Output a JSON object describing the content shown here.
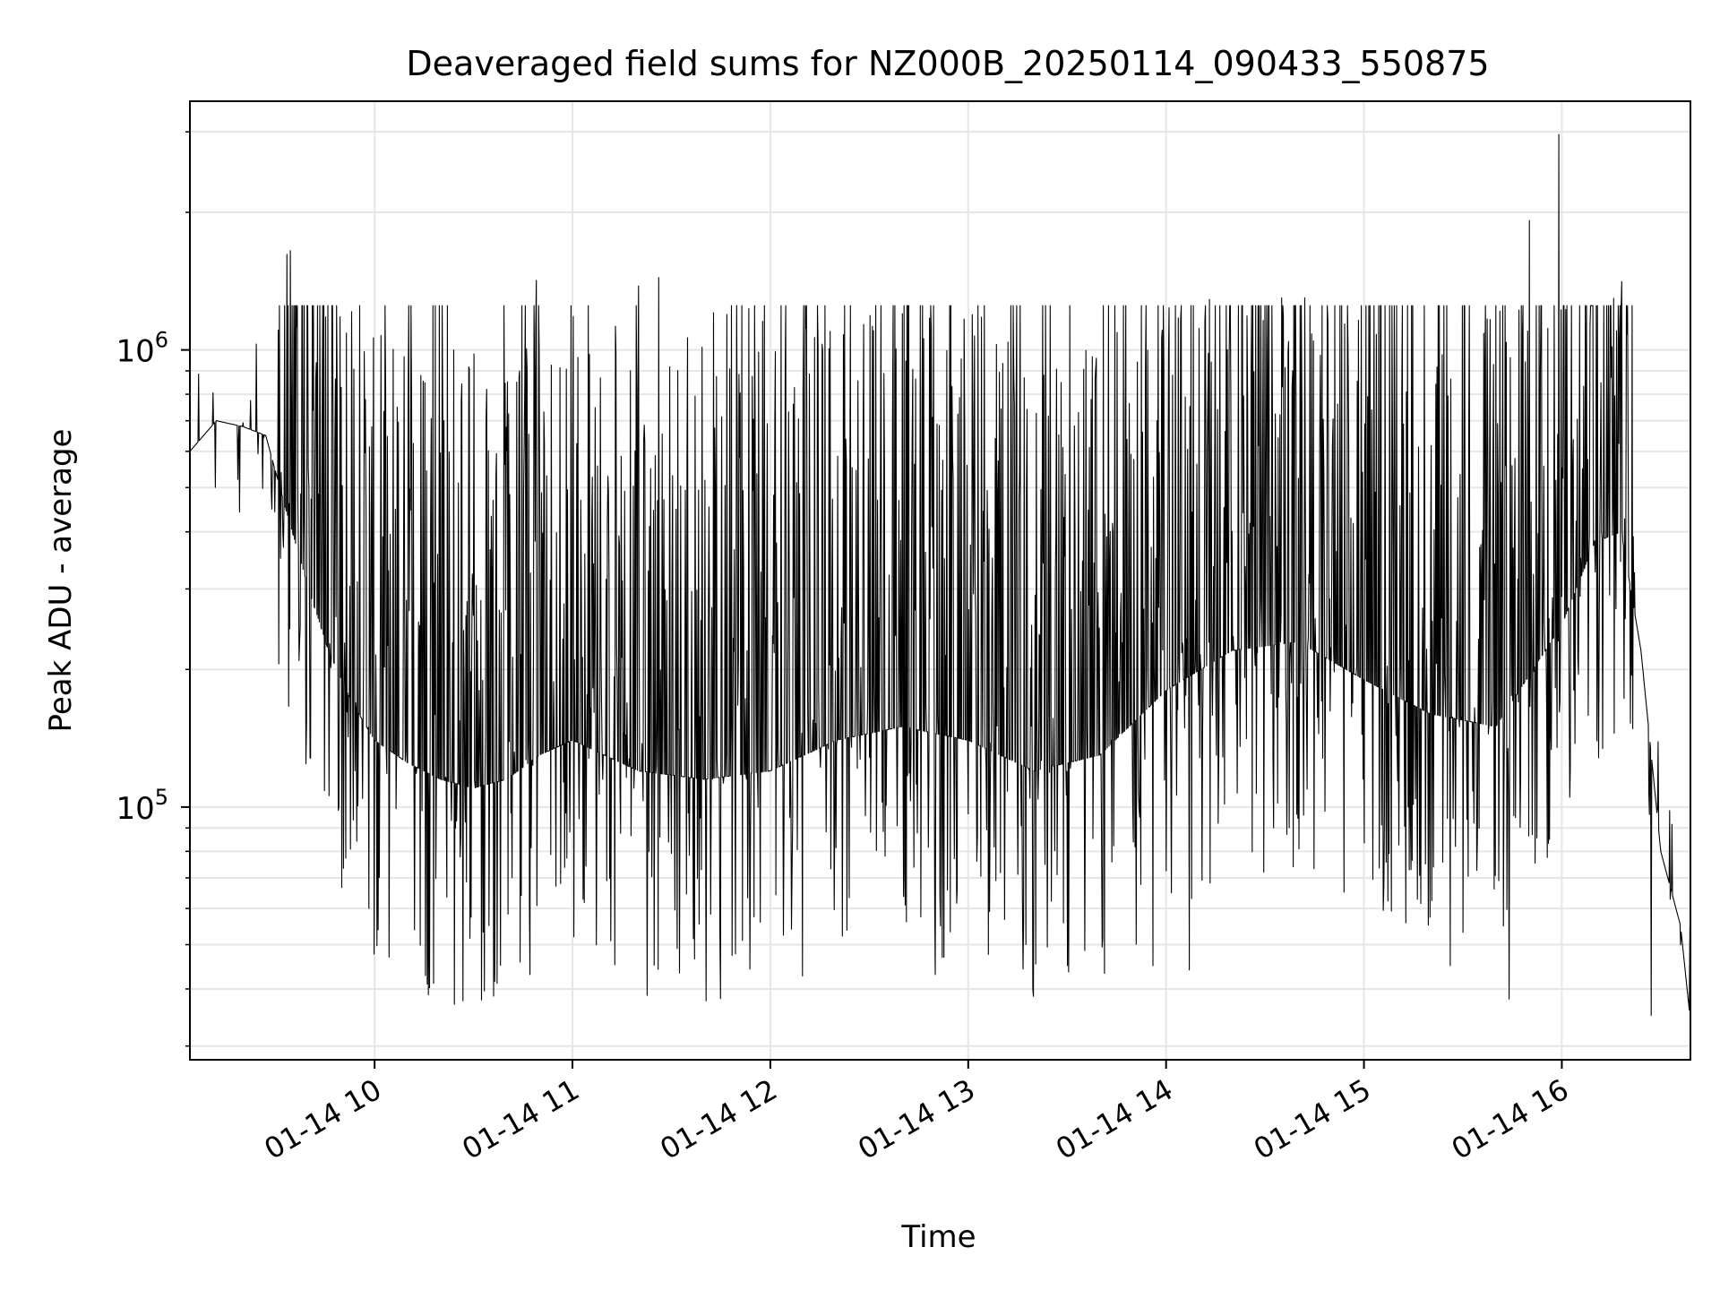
{
  "chart_data": {
    "type": "line",
    "title": "Deaveraged field sums for NZ000B_20250114_090433_550875",
    "xlabel": "Time",
    "ylabel": "Peak ADU - average",
    "yscale": "log",
    "xlim": [
      "2025-01-14 09:04",
      "2025-01-14 16:39"
    ],
    "ylim": [
      28000,
      3500000
    ],
    "grid": true,
    "legend": "none",
    "line_color": "#000000",
    "grid_color": "#e6e6e6",
    "x_ticks": [
      {
        "label": "01-14 10",
        "value": "2025-01-14 10:00"
      },
      {
        "label": "01-14 11",
        "value": "2025-01-14 11:00"
      },
      {
        "label": "01-14 12",
        "value": "2025-01-14 12:00"
      },
      {
        "label": "01-14 13",
        "value": "2025-01-14 13:00"
      },
      {
        "label": "01-14 14",
        "value": "2025-01-14 14:00"
      },
      {
        "label": "01-14 15",
        "value": "2025-01-14 15:00"
      },
      {
        "label": "01-14 16",
        "value": "2025-01-14 16:00"
      }
    ],
    "y_ticks": [
      {
        "base": "10",
        "exp": "5",
        "value": 100000
      },
      {
        "base": "10",
        "exp": "6",
        "value": 1000000
      }
    ],
    "series": [
      {
        "points": [
          [
            "2025-01-14 09:04",
            600000
          ],
          [
            "2025-01-14 09:12",
            700000
          ],
          [
            "2025-01-14 09:20",
            680000
          ],
          [
            "2025-01-14 09:27",
            650000
          ],
          [
            "2025-01-14 09:33",
            450000
          ],
          [
            "2025-01-14 09:40",
            300000
          ],
          [
            "2025-01-14 09:46",
            220000
          ],
          [
            "2025-01-14 09:53",
            170000
          ],
          [
            "2025-01-14 10:00",
            140000
          ],
          [
            "2025-01-14 10:10",
            125000
          ],
          [
            "2025-01-14 10:20",
            115000
          ],
          [
            "2025-01-14 10:30",
            110000
          ],
          [
            "2025-01-14 10:40",
            115000
          ],
          [
            "2025-01-14 10:50",
            130000
          ],
          [
            "2025-01-14 11:00",
            140000
          ],
          [
            "2025-01-14 11:20",
            120000
          ],
          [
            "2025-01-14 11:40",
            115000
          ],
          [
            "2025-01-14 12:00",
            120000
          ],
          [
            "2025-01-14 12:20",
            140000
          ],
          [
            "2025-01-14 12:40",
            150000
          ],
          [
            "2025-01-14 13:00",
            140000
          ],
          [
            "2025-01-14 13:20",
            120000
          ],
          [
            "2025-01-14 13:40",
            130000
          ],
          [
            "2025-01-14 14:00",
            180000
          ],
          [
            "2025-01-14 14:20",
            220000
          ],
          [
            "2025-01-14 14:40",
            230000
          ],
          [
            "2025-01-14 15:00",
            190000
          ],
          [
            "2025-01-14 15:20",
            160000
          ],
          [
            "2025-01-14 15:40",
            150000
          ],
          [
            "2025-01-14 16:00",
            250000
          ],
          [
            "2025-01-14 16:10",
            380000
          ],
          [
            "2025-01-14 16:18",
            400000
          ],
          [
            "2025-01-14 16:24",
            220000
          ],
          [
            "2025-01-14 16:30",
            80000
          ],
          [
            "2025-01-14 16:36",
            55000
          ],
          [
            "2025-01-14 16:39",
            34000
          ]
        ],
        "peaks": [
          [
            "2025-01-14 09:24",
            1030000
          ],
          [
            "2025-01-14 10:14",
            880000
          ],
          [
            "2025-01-14 10:43",
            850000
          ],
          [
            "2025-01-14 10:49",
            1420000
          ],
          [
            "2025-01-14 11:20",
            1380000
          ],
          [
            "2025-01-14 11:26",
            1440000
          ],
          [
            "2025-01-14 12:40",
            1200000
          ],
          [
            "2025-01-14 13:04",
            1180000
          ],
          [
            "2025-01-14 14:13",
            1290000
          ],
          [
            "2025-01-14 14:35",
            1300000
          ],
          [
            "2025-01-14 14:42",
            1300000
          ],
          [
            "2025-01-14 15:50",
            1920000
          ],
          [
            "2025-01-14 15:59",
            2960000
          ],
          [
            "2025-01-14 16:15",
            870000
          ]
        ],
        "dips": [
          [
            "2025-01-14 09:49",
            100000
          ],
          [
            "2025-01-14 10:47",
            43000
          ],
          [
            "2025-01-14 12:50",
            43000
          ],
          [
            "2025-01-14 13:30",
            45000
          ],
          [
            "2025-01-14 13:56",
            45000
          ],
          [
            "2025-01-14 14:07",
            44000
          ],
          [
            "2025-01-14 15:26",
            45000
          ],
          [
            "2025-01-14 15:44",
            38000
          ],
          [
            "2025-01-14 16:27",
            35000
          ]
        ]
      }
    ]
  }
}
